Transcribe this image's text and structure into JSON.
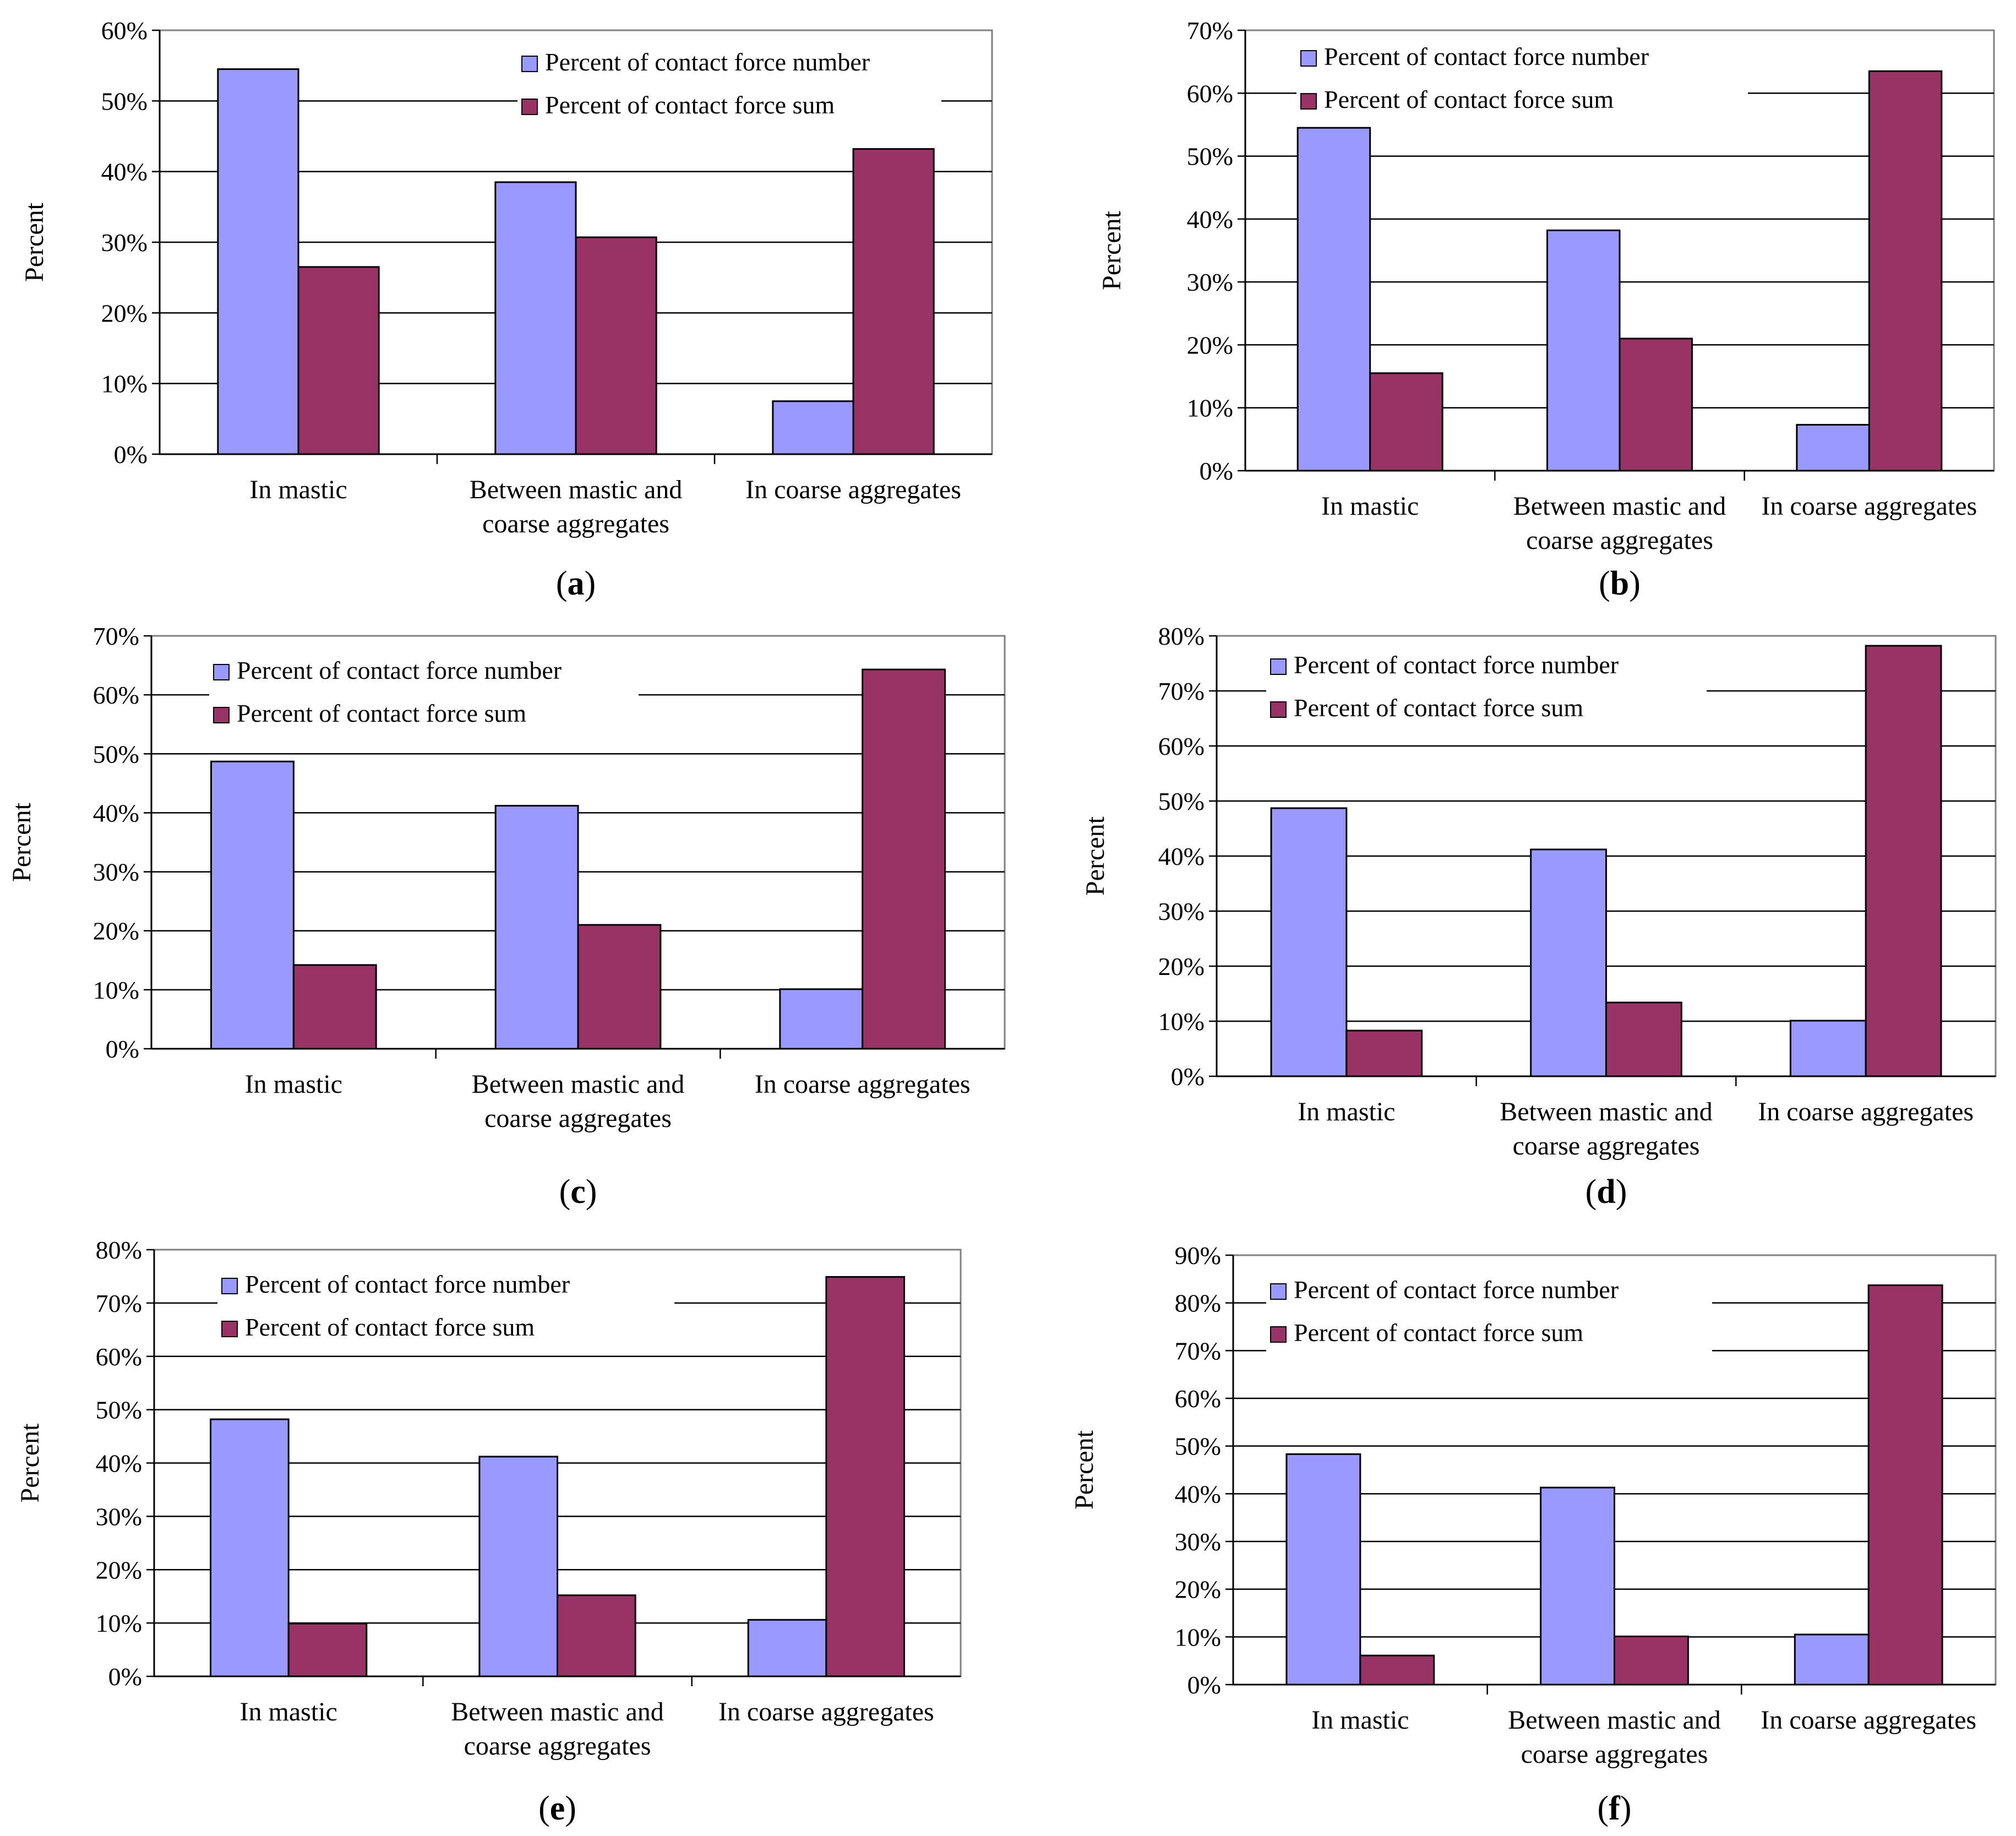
{
  "figure": {
    "colors": {
      "number": "#9999ff",
      "sum": "#993366",
      "grid": "#000000",
      "background": "#ffffff"
    }
  },
  "chart_data": [
    {
      "id": "a",
      "panel_label": "a",
      "type": "bar",
      "categories": [
        "In mastic",
        "Between mastic and coarse aggregates",
        "In coarse aggregates"
      ],
      "category_lines": [
        [
          "In mastic"
        ],
        [
          "Between mastic and",
          "coarse aggregates"
        ],
        [
          "In coarse aggregates"
        ]
      ],
      "series": [
        {
          "name": "Percent of contact force number",
          "values": [
            54.5,
            38.5,
            7.5
          ]
        },
        {
          "name": "Percent of contact force sum",
          "values": [
            26.5,
            30.7,
            43.2
          ]
        }
      ],
      "ylabel": "Percent",
      "ylim": [
        0,
        60
      ],
      "yticks": [
        0,
        10,
        20,
        30,
        40,
        50,
        60
      ],
      "ytick_labels": [
        "0%",
        "10%",
        "20%",
        "30%",
        "40%",
        "50%",
        "60%"
      ],
      "legend": "top-right",
      "grid": true
    },
    {
      "id": "b",
      "panel_label": "b",
      "type": "bar",
      "categories": [
        "In mastic",
        "Between mastic and coarse aggregates",
        "In coarse aggregates"
      ],
      "category_lines": [
        [
          "In mastic"
        ],
        [
          "Between mastic and",
          "coarse aggregates"
        ],
        [
          "In coarse aggregates"
        ]
      ],
      "series": [
        {
          "name": "Percent of contact force number",
          "values": [
            54.5,
            38.2,
            7.3
          ]
        },
        {
          "name": "Percent of contact force sum",
          "values": [
            15.5,
            21.0,
            63.5
          ]
        }
      ],
      "ylabel": "Percent",
      "ylim": [
        0,
        70
      ],
      "yticks": [
        0,
        10,
        20,
        30,
        40,
        50,
        60,
        70
      ],
      "ytick_labels": [
        "0%",
        "10%",
        "20%",
        "30%",
        "40%",
        "50%",
        "60%",
        "70%"
      ],
      "legend": "top-left",
      "grid": true
    },
    {
      "id": "c",
      "panel_label": "c",
      "type": "bar",
      "categories": [
        "In mastic",
        "Between mastic and coarse aggregates",
        "In coarse aggregates"
      ],
      "category_lines": [
        [
          "In mastic"
        ],
        [
          "Between mastic and",
          "coarse aggregates"
        ],
        [
          "In coarse aggregates"
        ]
      ],
      "series": [
        {
          "name": "Percent of contact force number",
          "values": [
            48.7,
            41.2,
            10.1
          ]
        },
        {
          "name": "Percent of contact force sum",
          "values": [
            14.2,
            21.0,
            64.3
          ]
        }
      ],
      "ylabel": "Percent",
      "ylim": [
        0,
        70
      ],
      "yticks": [
        0,
        10,
        20,
        30,
        40,
        50,
        60,
        70
      ],
      "ytick_labels": [
        "0%",
        "10%",
        "20%",
        "30%",
        "40%",
        "50%",
        "60%",
        "70%"
      ],
      "legend": "top-left",
      "grid": true
    },
    {
      "id": "d",
      "panel_label": "d",
      "type": "bar",
      "categories": [
        "In mastic",
        "Between mastic and coarse aggregates",
        "In coarse aggregates"
      ],
      "category_lines": [
        [
          "In mastic"
        ],
        [
          "Between mastic and",
          "coarse aggregates"
        ],
        [
          "In coarse aggregates"
        ]
      ],
      "series": [
        {
          "name": "Percent of contact force number",
          "values": [
            48.7,
            41.2,
            10.1
          ]
        },
        {
          "name": "Percent of contact force sum",
          "values": [
            8.3,
            13.4,
            78.2
          ]
        }
      ],
      "ylabel": "Percent",
      "ylim": [
        0,
        80
      ],
      "yticks": [
        0,
        10,
        20,
        30,
        40,
        50,
        60,
        70,
        80
      ],
      "ytick_labels": [
        "0%",
        "10%",
        "20%",
        "30%",
        "40%",
        "50%",
        "60%",
        "70%",
        "80%"
      ],
      "legend": "top-left",
      "grid": true
    },
    {
      "id": "e",
      "panel_label": "e",
      "type": "bar",
      "categories": [
        "In mastic",
        "Between mastic and coarse aggregates",
        "In coarse aggregates"
      ],
      "category_lines": [
        [
          "In mastic"
        ],
        [
          "Between mastic and",
          "coarse aggregates"
        ],
        [
          "In coarse aggregates"
        ]
      ],
      "series": [
        {
          "name": "Percent of contact force number",
          "values": [
            48.2,
            41.2,
            10.6
          ]
        },
        {
          "name": "Percent of contact force sum",
          "values": [
            9.9,
            15.2,
            74.9
          ]
        }
      ],
      "ylabel": "Percent",
      "ylim": [
        0,
        80
      ],
      "yticks": [
        0,
        10,
        20,
        30,
        40,
        50,
        60,
        70,
        80
      ],
      "ytick_labels": [
        "0%",
        "10%",
        "20%",
        "30%",
        "40%",
        "50%",
        "60%",
        "70%",
        "80%"
      ],
      "legend": "top-left",
      "grid": true
    },
    {
      "id": "f",
      "panel_label": "f",
      "type": "bar",
      "categories": [
        "In mastic",
        "Between mastic and coarse aggregates",
        "In coarse aggregates"
      ],
      "category_lines": [
        [
          "In mastic"
        ],
        [
          "Between mastic and",
          "coarse aggregates"
        ],
        [
          "In coarse aggregates"
        ]
      ],
      "series": [
        {
          "name": "Percent of contact force number",
          "values": [
            48.3,
            41.3,
            10.5
          ]
        },
        {
          "name": "Percent of contact force sum",
          "values": [
            6.1,
            10.1,
            83.7
          ]
        }
      ],
      "ylabel": "Percent",
      "ylim": [
        0,
        90
      ],
      "yticks": [
        0,
        10,
        20,
        30,
        40,
        50,
        60,
        70,
        80,
        90
      ],
      "ytick_labels": [
        "0%",
        "10%",
        "20%",
        "30%",
        "40%",
        "50%",
        "60%",
        "70%",
        "80%",
        "90%"
      ],
      "legend": "top-left",
      "grid": true
    }
  ]
}
